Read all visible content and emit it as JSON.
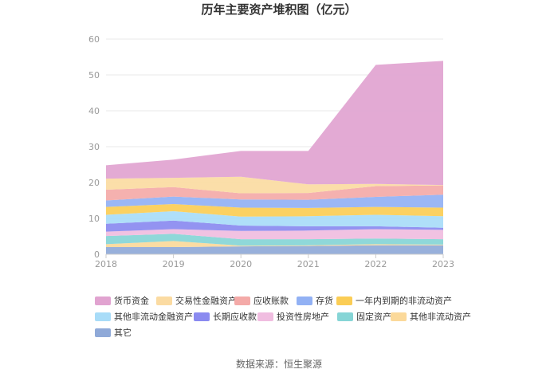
{
  "chart_data": {
    "type": "area",
    "stacked": true,
    "title": "历年主要资产堆积图（亿元）",
    "x": [
      "2018",
      "2019",
      "2020",
      "2021",
      "2022",
      "2023"
    ],
    "ylim": [
      0,
      60
    ],
    "yticks": [
      "0",
      "10",
      "20",
      "30",
      "40",
      "50",
      "60"
    ],
    "grid": true,
    "legend_position": "bottom",
    "series": [
      {
        "name": "其它",
        "color": "#8fa9d8",
        "values": [
          2.0,
          2.0,
          2.2,
          2.3,
          2.5,
          2.5
        ]
      },
      {
        "name": "其他非流动资产",
        "color": "#fbd99a",
        "values": [
          0.8,
          1.7,
          0.2,
          0.2,
          0.3,
          0.2
        ]
      },
      {
        "name": "固定资产",
        "color": "#86d5d6",
        "values": [
          2.3,
          2.0,
          1.8,
          1.7,
          1.6,
          1.5
        ]
      },
      {
        "name": "投资性房地产",
        "color": "#f0bde0",
        "values": [
          1.2,
          1.3,
          2.3,
          2.4,
          2.6,
          2.6
        ]
      },
      {
        "name": "长期应收款",
        "color": "#8a8af0",
        "values": [
          2.2,
          2.4,
          1.5,
          1.2,
          0.8,
          0.6
        ]
      },
      {
        "name": "其他非流动金融资产",
        "color": "#a8dcf8",
        "values": [
          2.5,
          2.6,
          2.5,
          2.8,
          3.2,
          3.2
        ]
      },
      {
        "name": "一年内到期的非流动资产",
        "color": "#fbcd55",
        "values": [
          2.2,
          2.0,
          2.5,
          2.3,
          2.2,
          2.4
        ]
      },
      {
        "name": "存货",
        "color": "#92b1f4",
        "values": [
          1.8,
          2.1,
          2.3,
          2.3,
          2.8,
          3.6
        ]
      },
      {
        "name": "应收账款",
        "color": "#f4aaa8",
        "values": [
          3.0,
          2.6,
          1.7,
          1.9,
          3.0,
          2.6
        ]
      },
      {
        "name": "交易性金融资产",
        "color": "#fbdba2",
        "values": [
          3.1,
          2.6,
          4.6,
          2.4,
          0.6,
          0.1
        ]
      },
      {
        "name": "货币资金",
        "color": "#e1a3d0",
        "values": [
          3.7,
          5.1,
          7.2,
          9.3,
          33.2,
          34.6
        ]
      }
    ],
    "legend_order": [
      "货币资金",
      "交易性金融资产",
      "应收账款",
      "存货",
      "一年内到期的非流动资产",
      "其他非流动金融资产",
      "长期应收款",
      "投资性房地产",
      "固定资产",
      "其他非流动资产",
      "其它"
    ]
  },
  "footer": {
    "source": "数据来源：恒生聚源"
  }
}
